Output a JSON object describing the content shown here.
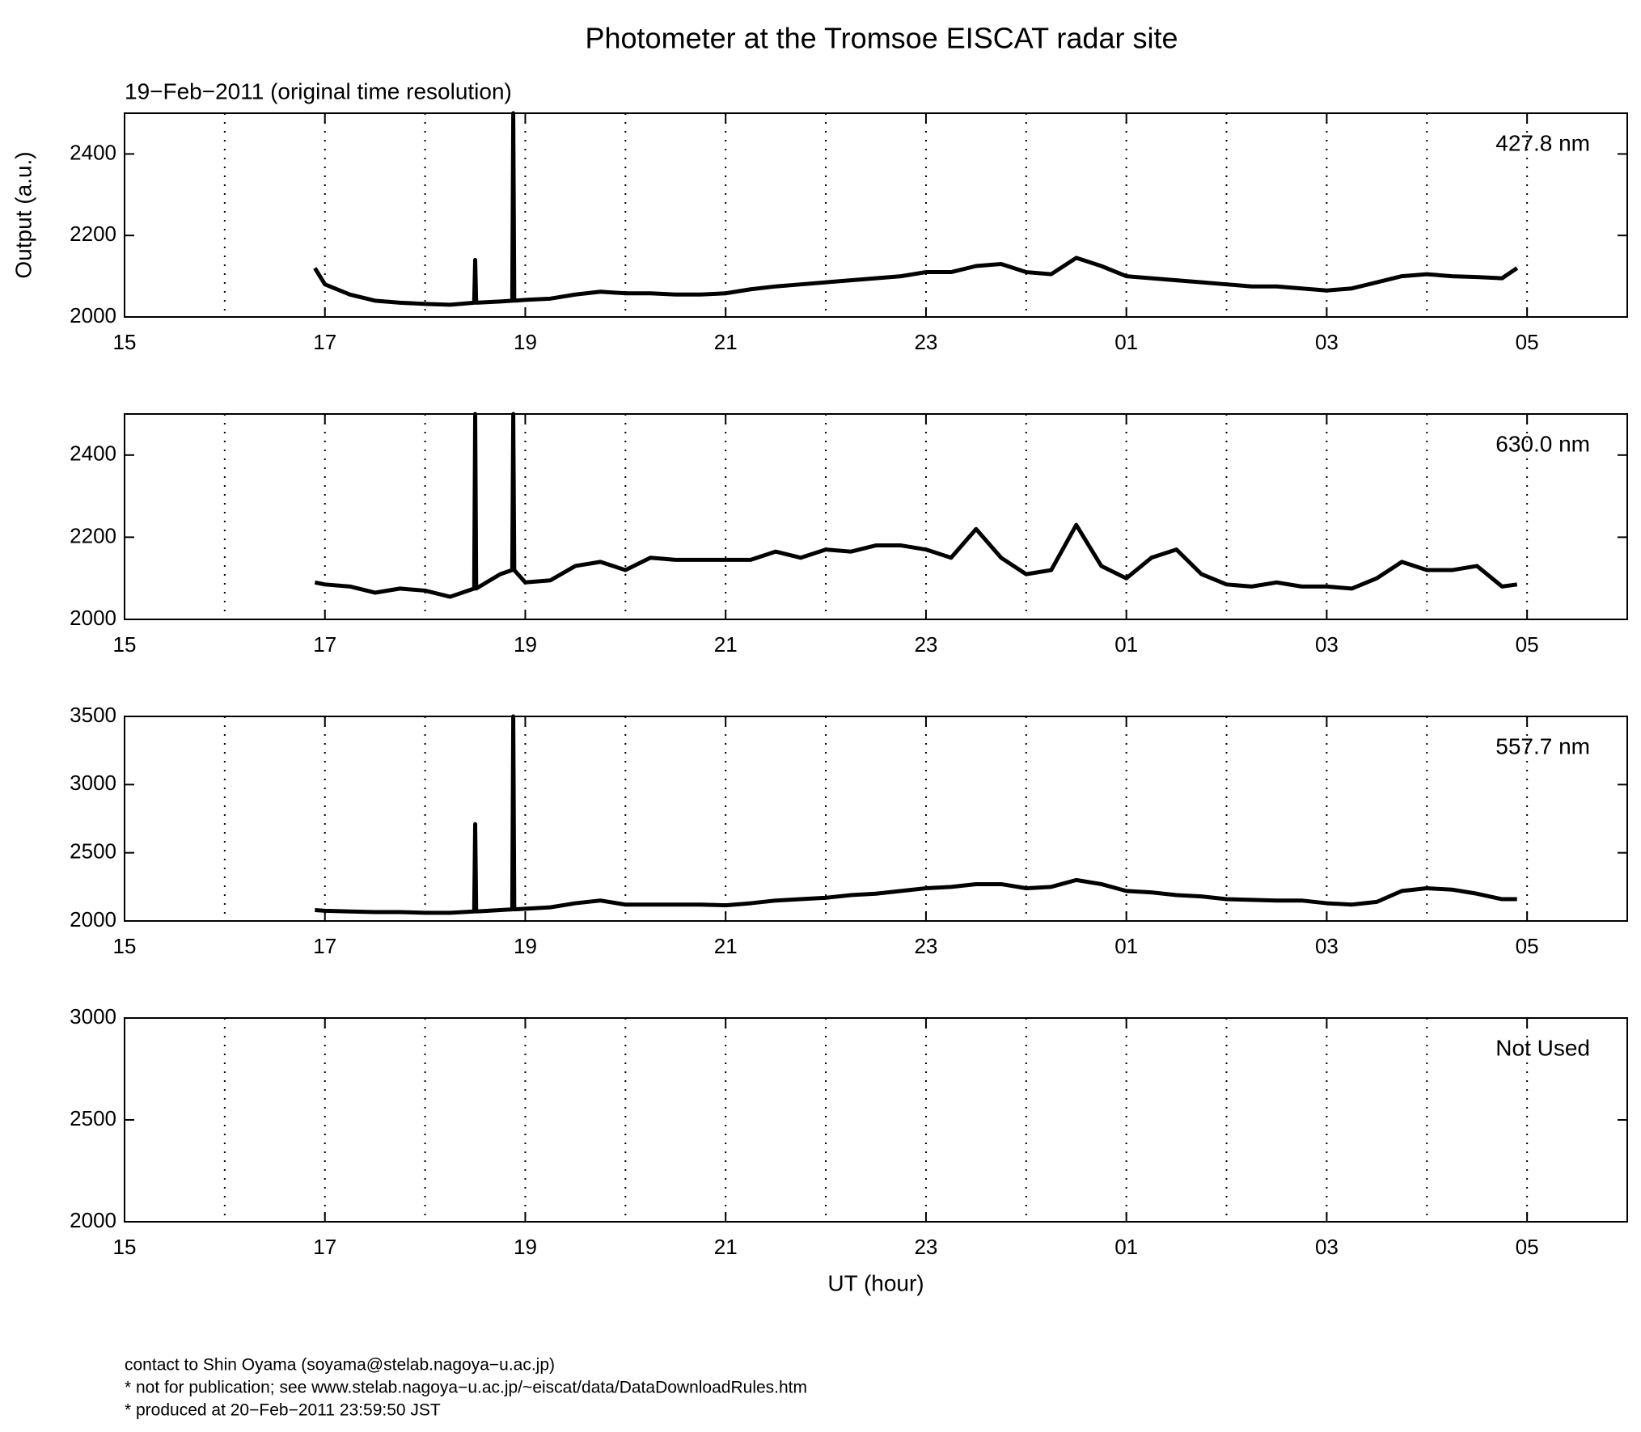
{
  "title": "Photometer at the Tromsoe EISCAT radar site",
  "subtitle": "19−Feb−2011 (original time resolution)",
  "footer": [
    "contact to Shin Oyama (soyama@stelab.nagoya−u.ac.jp)",
    "* not for publication; see www.stelab.nagoya−u.ac.jp/~eiscat/data/DataDownloadRules.htm",
    "* produced at 20−Feb−2011 23:59:50 JST"
  ],
  "chart_data": [
    {
      "type": "line",
      "label": "427.8 nm",
      "ylabel": "Output (a.u.)",
      "xlim": [
        15,
        30
      ],
      "xticks": [
        15,
        17,
        19,
        21,
        23,
        {
          "value": 25,
          "label": "01"
        },
        {
          "value": 27,
          "label": "03"
        },
        {
          "value": 29,
          "label": "05"
        }
      ],
      "xminor": [
        16,
        18,
        20,
        22,
        24,
        26,
        28
      ],
      "grid": true,
      "ylim": [
        2000,
        2500
      ],
      "yticks": [
        2000,
        2200,
        2400
      ],
      "x": [
        16.9,
        17,
        17.25,
        17.5,
        17.75,
        18,
        18.25,
        18.49,
        18.5,
        18.51,
        18.75,
        18.87,
        18.88,
        18.89,
        19,
        19.25,
        19.5,
        19.75,
        20,
        20.25,
        20.5,
        20.75,
        21,
        21.25,
        21.5,
        21.75,
        22,
        22.25,
        22.5,
        22.75,
        23,
        23.25,
        23.5,
        23.75,
        24,
        24.25,
        24.5,
        24.75,
        25,
        25.25,
        25.5,
        25.75,
        26,
        26.25,
        26.5,
        26.75,
        27,
        27.25,
        27.5,
        27.75,
        28,
        28.25,
        28.5,
        28.75,
        28.9
      ],
      "series": [
        {
          "color": "#000000",
          "values": [
            2120,
            2080,
            2055,
            2040,
            2035,
            2032,
            2030,
            2035,
            2140,
            2035,
            2038,
            2040,
            2500,
            2040,
            2042,
            2045,
            2055,
            2062,
            2058,
            2058,
            2055,
            2055,
            2058,
            2068,
            2075,
            2080,
            2085,
            2090,
            2095,
            2100,
            2110,
            2110,
            2125,
            2130,
            2110,
            2105,
            2145,
            2125,
            2100,
            2095,
            2090,
            2085,
            2080,
            2075,
            2075,
            2070,
            2065,
            2070,
            2085,
            2100,
            2105,
            2100,
            2098,
            2095,
            2120
          ]
        }
      ]
    },
    {
      "type": "line",
      "label": "630.0 nm",
      "xlim": [
        15,
        30
      ],
      "xticks": [
        15,
        17,
        19,
        21,
        23,
        {
          "value": 25,
          "label": "01"
        },
        {
          "value": 27,
          "label": "03"
        },
        {
          "value": 29,
          "label": "05"
        }
      ],
      "xminor": [
        16,
        18,
        20,
        22,
        24,
        26,
        28
      ],
      "grid": true,
      "ylim": [
        2000,
        2500
      ],
      "yticks": [
        2000,
        2200,
        2400
      ],
      "x": [
        16.9,
        17,
        17.25,
        17.5,
        17.75,
        18,
        18.25,
        18.49,
        18.5,
        18.51,
        18.75,
        18.87,
        18.88,
        18.89,
        19,
        19.25,
        19.5,
        19.75,
        20,
        20.25,
        20.5,
        20.75,
        21,
        21.25,
        21.5,
        21.75,
        22,
        22.25,
        22.5,
        22.75,
        23,
        23.25,
        23.5,
        23.75,
        24,
        24.25,
        24.5,
        24.75,
        25,
        25.25,
        25.5,
        25.75,
        26,
        26.25,
        26.5,
        26.75,
        27,
        27.25,
        27.5,
        27.75,
        28,
        28.25,
        28.5,
        28.75,
        28.9
      ],
      "series": [
        {
          "color": "#000000",
          "values": [
            2090,
            2085,
            2080,
            2065,
            2075,
            2070,
            2055,
            2075,
            2500,
            2075,
            2110,
            2120,
            2500,
            2120,
            2090,
            2095,
            2130,
            2140,
            2120,
            2150,
            2145,
            2145,
            2145,
            2145,
            2165,
            2150,
            2170,
            2165,
            2180,
            2180,
            2170,
            2150,
            2220,
            2150,
            2110,
            2120,
            2230,
            2130,
            2100,
            2150,
            2170,
            2110,
            2085,
            2080,
            2090,
            2080,
            2080,
            2075,
            2100,
            2140,
            2120,
            2120,
            2130,
            2080,
            2085
          ]
        }
      ]
    },
    {
      "type": "line",
      "label": "557.7 nm",
      "xlim": [
        15,
        30
      ],
      "xticks": [
        15,
        17,
        19,
        21,
        23,
        {
          "value": 25,
          "label": "01"
        },
        {
          "value": 27,
          "label": "03"
        },
        {
          "value": 29,
          "label": "05"
        }
      ],
      "xminor": [
        16,
        18,
        20,
        22,
        24,
        26,
        28
      ],
      "grid": true,
      "ylim": [
        2000,
        3500
      ],
      "yticks": [
        2000,
        2500,
        3000,
        3500
      ],
      "x": [
        16.9,
        17,
        17.25,
        17.5,
        17.75,
        18,
        18.25,
        18.49,
        18.5,
        18.51,
        18.75,
        18.87,
        18.88,
        18.89,
        19,
        19.25,
        19.5,
        19.75,
        20,
        20.25,
        20.5,
        20.75,
        21,
        21.25,
        21.5,
        21.75,
        22,
        22.25,
        22.5,
        22.75,
        23,
        23.25,
        23.5,
        23.75,
        24,
        24.25,
        24.5,
        24.75,
        25,
        25.25,
        25.5,
        25.75,
        26,
        26.25,
        26.5,
        26.75,
        27,
        27.25,
        27.5,
        27.75,
        28,
        28.25,
        28.5,
        28.75,
        28.9
      ],
      "series": [
        {
          "color": "#000000",
          "values": [
            2080,
            2075,
            2070,
            2065,
            2065,
            2060,
            2060,
            2070,
            2710,
            2070,
            2080,
            2085,
            3500,
            2085,
            2090,
            2100,
            2130,
            2150,
            2120,
            2120,
            2120,
            2120,
            2115,
            2130,
            2150,
            2160,
            2170,
            2190,
            2200,
            2220,
            2240,
            2250,
            2270,
            2270,
            2240,
            2250,
            2300,
            2270,
            2220,
            2210,
            2190,
            2180,
            2160,
            2155,
            2150,
            2150,
            2130,
            2120,
            2140,
            2220,
            2240,
            2230,
            2200,
            2160,
            2160
          ]
        }
      ]
    },
    {
      "type": "line",
      "label": "Not Used",
      "xlabel": "UT (hour)",
      "xlim": [
        15,
        30
      ],
      "xticks": [
        15,
        17,
        19,
        21,
        23,
        {
          "value": 25,
          "label": "01"
        },
        {
          "value": 27,
          "label": "03"
        },
        {
          "value": 29,
          "label": "05"
        }
      ],
      "xminor": [
        16,
        18,
        20,
        22,
        24,
        26,
        28
      ],
      "grid": true,
      "ylim": [
        2000,
        3000
      ],
      "yticks": [
        2000,
        2500,
        3000
      ]
    }
  ]
}
